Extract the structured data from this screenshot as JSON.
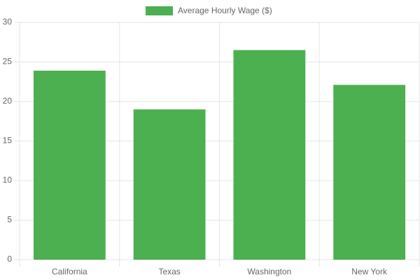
{
  "chart_data": {
    "type": "bar",
    "categories": [
      "California",
      "Texas",
      "Washington",
      "New York"
    ],
    "series": [
      {
        "name": "Average Hourly Wage ($)",
        "color": "#4caf50",
        "values": [
          23.9,
          19,
          26.5,
          22.1
        ]
      }
    ],
    "ylim": [
      0,
      30
    ],
    "yticks": [
      0,
      5,
      10,
      15,
      20,
      25,
      30
    ],
    "grid": true,
    "legend": "top"
  }
}
